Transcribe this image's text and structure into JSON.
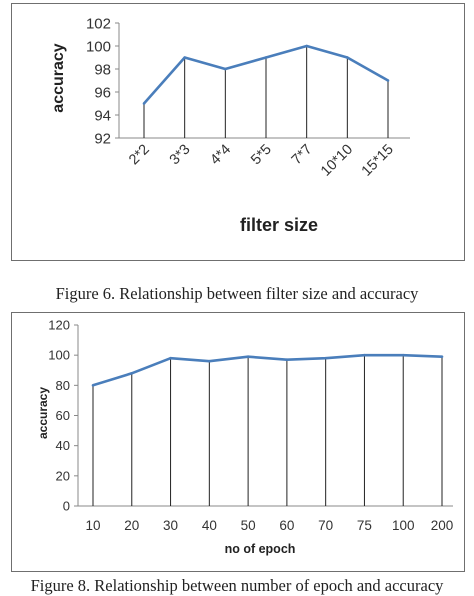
{
  "chart_data": [
    {
      "type": "line",
      "categories": [
        "2*2",
        "3*3",
        "4*4",
        "5*5",
        "7*7",
        "10*10",
        "15*15"
      ],
      "values": [
        95,
        99,
        98,
        99,
        100,
        99,
        97
      ],
      "xlabel": "filter size",
      "ylabel": "accuracy",
      "ylim": [
        92,
        102
      ],
      "yticks": [
        92,
        94,
        96,
        98,
        100,
        102
      ],
      "drop_lines": true,
      "grid": false,
      "color": "#4a7ebb"
    },
    {
      "type": "line",
      "categories": [
        "10",
        "20",
        "30",
        "40",
        "50",
        "60",
        "70",
        "75",
        "100",
        "200"
      ],
      "values": [
        80,
        88,
        98,
        96,
        99,
        97,
        98,
        100,
        100,
        99
      ],
      "xlabel": "no of epoch",
      "ylabel": "accuracy",
      "ylim": [
        0,
        120
      ],
      "yticks": [
        0,
        20,
        40,
        60,
        80,
        100,
        120
      ],
      "drop_lines": true,
      "grid": false,
      "color": "#4a7ebb"
    }
  ],
  "captions": {
    "figure6": "Figure 6. Relationship between filter size and accuracy",
    "figure8": "Figure 8. Relationship between number of epoch and accuracy"
  }
}
